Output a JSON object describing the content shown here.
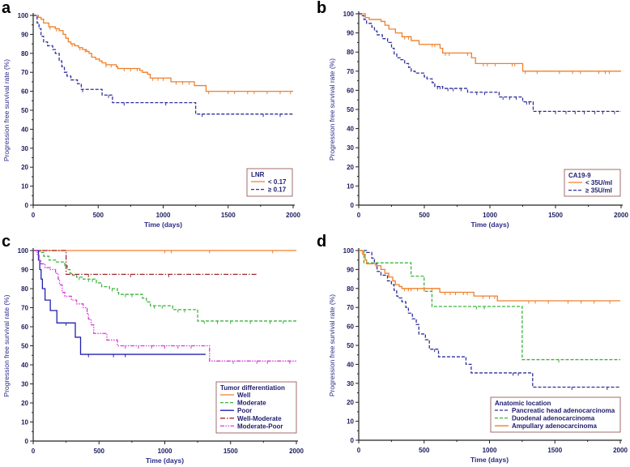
{
  "chart_data": [
    {
      "panel": "a",
      "type": "line",
      "step": true,
      "xlabel": "Time (days)",
      "ylabel": "Progression free survival rate (%)",
      "xlim": [
        0,
        2000
      ],
      "ylim": [
        0,
        100
      ],
      "xticks": [
        0,
        500,
        1000,
        1500,
        2000
      ],
      "yticks": [
        0,
        10,
        20,
        30,
        40,
        50,
        60,
        70,
        80,
        90,
        100
      ],
      "legend_title": "LNR",
      "legend_position": "bottom-right",
      "series": [
        {
          "name": "< 0.17",
          "color": "#f07f2a",
          "dash": "solid",
          "x": [
            0,
            40,
            60,
            80,
            120,
            170,
            200,
            230,
            250,
            270,
            290,
            320,
            350,
            380,
            410,
            430,
            450,
            480,
            510,
            530,
            560,
            640,
            650,
            820,
            840,
            880,
            900,
            1060,
            1240,
            1330,
            2000
          ],
          "y": [
            100,
            99,
            98,
            96,
            94,
            93,
            92,
            90,
            88,
            86,
            85,
            84,
            83,
            82,
            81,
            80,
            78,
            77,
            76,
            75,
            74,
            73,
            72,
            71,
            70,
            69,
            67,
            65,
            63,
            60,
            60
          ],
          "censored": [
            130,
            180,
            300,
            360,
            400,
            560,
            600,
            700,
            750,
            800,
            920,
            960,
            1000,
            1100,
            1150,
            1200,
            1350,
            1500,
            1550,
            1650,
            1700,
            1800,
            1900,
            1980
          ]
        },
        {
          "name": "≥ 0.17",
          "color": "#2e2e9e",
          "dash": "dashed",
          "x": [
            0,
            30,
            45,
            60,
            80,
            110,
            150,
            170,
            200,
            220,
            240,
            260,
            290,
            340,
            370,
            530,
            610,
            1250,
            2000
          ],
          "y": [
            100,
            96,
            93,
            89,
            86,
            84,
            82,
            80,
            76,
            73,
            70,
            68,
            66,
            64,
            61,
            58,
            54,
            48,
            48
          ],
          "censored": [
            380,
            580,
            700,
            1020,
            1300,
            1770,
            1900
          ]
        }
      ]
    },
    {
      "panel": "b",
      "type": "line",
      "step": true,
      "xlabel": "Time (days)",
      "ylabel": "Progression free survival rate (%)",
      "xlim": [
        0,
        2000
      ],
      "ylim": [
        0,
        100
      ],
      "xticks": [
        0,
        500,
        1000,
        1500,
        2000
      ],
      "yticks": [
        0,
        10,
        20,
        30,
        40,
        50,
        60,
        70,
        80,
        90,
        100
      ],
      "legend_title": "CA19-9",
      "legend_position": "bottom-right",
      "series": [
        {
          "name": "< 35U/ml",
          "color": "#f07f2a",
          "dash": "solid",
          "x": [
            0,
            50,
            80,
            170,
            200,
            230,
            280,
            330,
            400,
            460,
            620,
            640,
            860,
            890,
            1250,
            2000
          ],
          "y": [
            100,
            98,
            97,
            96,
            94,
            92,
            90,
            88,
            86,
            84,
            82,
            79.5,
            77,
            74,
            70,
            70
          ],
          "censored": [
            350,
            380,
            560,
            580,
            660,
            690,
            830,
            950,
            980,
            1040,
            1170,
            1190,
            1270,
            1360,
            1530,
            1630,
            1690,
            1830,
            1880,
            1910
          ]
        },
        {
          "name": "≥ 35U/ml",
          "color": "#2e2e9e",
          "dash": "dashed",
          "x": [
            0,
            20,
            40,
            60,
            100,
            120,
            140,
            180,
            220,
            250,
            270,
            290,
            320,
            350,
            380,
            400,
            430,
            500,
            520,
            560,
            580,
            640,
            830,
            1070,
            1250,
            1330,
            2000
          ],
          "y": [
            100,
            99,
            97,
            95,
            93,
            91,
            89,
            87,
            85,
            82,
            79,
            77,
            76,
            74,
            72,
            70,
            69,
            67,
            66,
            64,
            62,
            61,
            59,
            56.5,
            54,
            49,
            49
          ],
          "censored": [
            600,
            620,
            680,
            720,
            780,
            900,
            960,
            1100,
            1150,
            1200,
            1280,
            1300,
            1380,
            1500,
            1580,
            1650,
            1720,
            1800,
            1860,
            1950
          ]
        }
      ]
    },
    {
      "panel": "c",
      "type": "line",
      "step": true,
      "xlabel": "Time (days)",
      "ylabel": "Progression free survival rate (%)",
      "xlim": [
        0,
        2000
      ],
      "ylim": [
        0,
        100
      ],
      "xticks": [
        0,
        500,
        1000,
        1500,
        2000
      ],
      "yticks": [
        0,
        10,
        20,
        30,
        40,
        50,
        60,
        70,
        80,
        90,
        100
      ],
      "legend_title": "Tumor differentiation",
      "legend_position": "bottom-right",
      "series": [
        {
          "name": "Well",
          "color": "#f07f2a",
          "dash": "solid",
          "x": [
            0,
            2000
          ],
          "y": [
            100,
            100
          ],
          "censored": [
            1000,
            1050,
            1340,
            1820
          ]
        },
        {
          "name": "Moderate",
          "color": "#3cb43c",
          "dash": "dashed",
          "x": [
            0,
            50,
            80,
            120,
            170,
            240,
            260,
            280,
            300,
            330,
            380,
            480,
            520,
            580,
            640,
            650,
            830,
            860,
            890,
            1060,
            1250,
            2000
          ],
          "y": [
            100,
            99,
            97,
            95,
            94,
            92,
            90,
            88,
            87,
            86,
            85,
            83,
            81,
            80,
            78,
            77,
            75,
            73,
            71,
            69,
            63,
            63
          ],
          "censored": [
            350,
            420,
            450,
            600,
            700,
            750,
            920,
            980,
            1100,
            1150,
            1300,
            1400,
            1500,
            1650,
            1800,
            1900
          ]
        },
        {
          "name": "Poor",
          "color": "#2020b0",
          "dash": "solid",
          "x": [
            0,
            40,
            50,
            60,
            70,
            90,
            130,
            180,
            320,
            360,
            1310
          ],
          "y": [
            100,
            95,
            90,
            85,
            80,
            74,
            68.5,
            62,
            54.5,
            45.5,
            45.5
          ],
          "censored": [
            250,
            420,
            610,
            700
          ]
        },
        {
          "name": "Well-Moderate",
          "color": "#a0282a",
          "dash": "dashdot",
          "x": [
            0,
            250,
            1700
          ],
          "y": [
            100,
            87.5,
            87.5
          ],
          "censored": [
            420,
            740,
            1030
          ]
        },
        {
          "name": "Moderate-Poor",
          "color": "#d33fd3",
          "dash": "dashdotdot",
          "x": [
            0,
            30,
            45,
            60,
            90,
            130,
            170,
            190,
            200,
            220,
            240,
            290,
            330,
            380,
            410,
            420,
            440,
            460,
            560,
            640,
            1340,
            2000
          ],
          "y": [
            100,
            98,
            95,
            93,
            91,
            90,
            88,
            85,
            82,
            78,
            76,
            74,
            72,
            70,
            67,
            64,
            61,
            56.5,
            53,
            50,
            42,
            42
          ],
          "censored": [
            700,
            800,
            900,
            1000,
            1100,
            1200,
            1520,
            1700,
            1780,
            1950
          ]
        }
      ]
    },
    {
      "panel": "d",
      "type": "line",
      "step": true,
      "xlabel": "Time (days)",
      "ylabel": "Progression free survival rate (%)",
      "xlim": [
        0,
        2000
      ],
      "ylim": [
        0,
        100
      ],
      "xticks": [
        0,
        500,
        1000,
        1500,
        2000
      ],
      "yticks": [
        0,
        10,
        20,
        30,
        40,
        50,
        60,
        70,
        80,
        90,
        100
      ],
      "legend_title": "Anatomic location",
      "legend_position": "bottom-right",
      "series": [
        {
          "name": "Pancreatic head adenocarcinoma",
          "color": "#2e2e9e",
          "dash": "dashed",
          "x": [
            0,
            60,
            100,
            120,
            140,
            170,
            220,
            250,
            270,
            290,
            300,
            330,
            360,
            380,
            410,
            440,
            460,
            510,
            540,
            610,
            820,
            860,
            1330,
            2000
          ],
          "y": [
            100,
            99,
            96,
            93,
            89,
            87,
            84,
            82,
            79,
            76,
            75,
            73,
            70,
            67,
            64,
            61,
            56,
            53,
            48,
            44,
            40,
            35.5,
            28,
            28
          ],
          "censored": [
            580,
            1180,
            1220,
            1630,
            1900
          ]
        },
        {
          "name": "Duodenal adenocarcinoma",
          "color": "#3cb43c",
          "dash": "dashed",
          "x": [
            0,
            40,
            400,
            500,
            560,
            1250,
            2000
          ],
          "y": [
            100,
            93.5,
            86.5,
            78.5,
            70.5,
            42.5,
            42.5
          ],
          "censored": [
            900,
            960,
            1530
          ]
        },
        {
          "name": "Ampullary adenocarcinoma",
          "color": "#f07f2a",
          "dash": "solid",
          "x": [
            0,
            30,
            50,
            60,
            130,
            170,
            200,
            230,
            260,
            280,
            310,
            330,
            620,
            880,
            1060,
            2000
          ],
          "y": [
            100,
            98,
            95,
            93,
            92,
            90,
            88,
            86,
            84,
            82,
            81,
            80,
            78,
            76,
            73.5,
            73.5
          ],
          "censored": [
            350,
            380,
            400,
            450,
            500,
            560,
            660,
            700,
            740,
            800,
            830,
            950,
            1000,
            1040,
            1300,
            1350,
            1450,
            1600,
            1700,
            1800,
            1920
          ]
        }
      ]
    }
  ]
}
